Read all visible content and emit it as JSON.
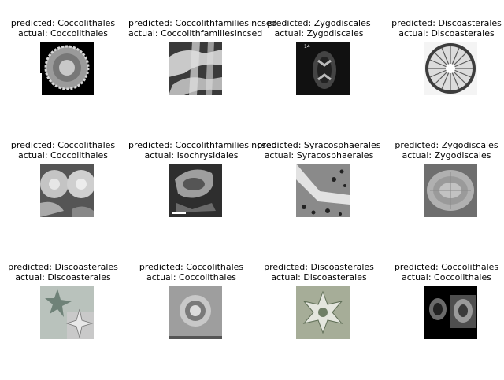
{
  "panels": [
    {
      "predicted": "predicted: Coccolithales",
      "actual": "actual: Coccolithales",
      "image": "coccolith-sem-disc"
    },
    {
      "predicted": "predicted: Coccolithfamiliesincsed",
      "actual": "actual: Coccolithfamiliesincsed",
      "image": "coccolith-plates-sem"
    },
    {
      "predicted": "predicted: Zygodiscales",
      "actual": "actual: Zygodiscales",
      "image": "zygodiscales-dark-micrograph"
    },
    {
      "predicted": "predicted: Discoasterales",
      "actual": "actual: Discoasterales",
      "image": "discoaster-radial-rosette"
    },
    {
      "predicted": "predicted: Coccolithales",
      "actual": "actual: Coccolithales",
      "image": "coccolith-pair-sem"
    },
    {
      "predicted": "predicted: Coccolithfamiliesincsed",
      "actual": "actual: Isochrysidales",
      "image": "isochrysidales-sem"
    },
    {
      "predicted": "predicted: Syracosphaerales",
      "actual": "actual: Syracosphaerales",
      "image": "syracosphaerales-trumpet-sem"
    },
    {
      "predicted": "predicted: Zygodiscales",
      "actual": "actual: Zygodiscales",
      "image": "zygodiscales-oval-sem"
    },
    {
      "predicted": "predicted: Discoasterales",
      "actual": "actual: Discoasterales",
      "image": "discoaster-stars-light"
    },
    {
      "predicted": "predicted: Coccolithales",
      "actual": "actual: Coccolithales",
      "image": "coccolith-ring-light"
    },
    {
      "predicted": "predicted: Discoasterales",
      "actual": "actual: Discoasterales",
      "image": "discoaster-rosette-green"
    },
    {
      "predicted": "predicted: Coccolithales",
      "actual": "actual: Coccolithales",
      "image": "coccolith-dark-pair"
    }
  ]
}
